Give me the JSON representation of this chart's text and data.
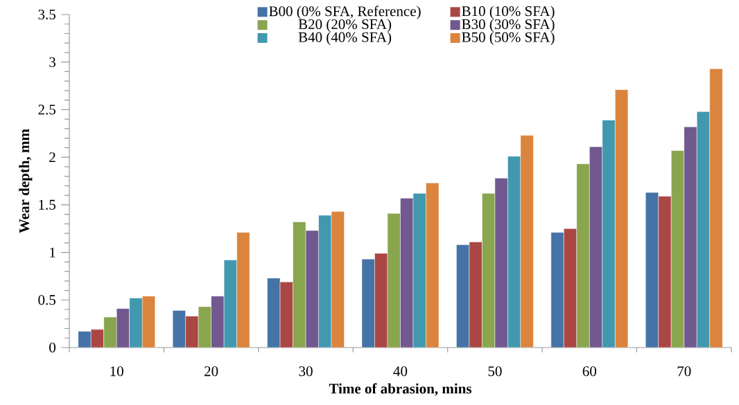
{
  "chart_data": {
    "type": "bar",
    "xlabel": "Time of abrasion, mins",
    "ylabel": "Wear depth, mm",
    "categories": [
      "10",
      "20",
      "30",
      "40",
      "50",
      "60",
      "70"
    ],
    "series": [
      {
        "name": "B00 (0% SFA, Reference)",
        "color": "#4572a7",
        "values": [
          0.17,
          0.39,
          0.73,
          0.93,
          1.08,
          1.21,
          1.63
        ]
      },
      {
        "name": "B10 (10% SFA)",
        "color": "#aa4643",
        "values": [
          0.19,
          0.33,
          0.69,
          0.99,
          1.11,
          1.25,
          1.59
        ]
      },
      {
        "name": "B20 (20% SFA)",
        "color": "#89a54e",
        "values": [
          0.32,
          0.43,
          1.32,
          1.41,
          1.62,
          1.93,
          2.07
        ]
      },
      {
        "name": "B30 (30% SFA)",
        "color": "#71588f",
        "values": [
          0.41,
          0.54,
          1.23,
          1.57,
          1.78,
          2.11,
          2.32
        ]
      },
      {
        "name": "B40 (40% SFA)",
        "color": "#4198af",
        "values": [
          0.52,
          0.92,
          1.39,
          1.62,
          2.01,
          2.39,
          2.48
        ]
      },
      {
        "name": "B50 (50% SFA)",
        "color": "#db843d",
        "values": [
          0.54,
          1.21,
          1.43,
          1.73,
          2.23,
          2.71,
          2.93
        ]
      }
    ],
    "ylim": [
      0,
      3.5
    ],
    "yticks": [
      0,
      0.5,
      1,
      1.5,
      2,
      2.5,
      3,
      3.5
    ],
    "grid": false,
    "legend": "top"
  }
}
